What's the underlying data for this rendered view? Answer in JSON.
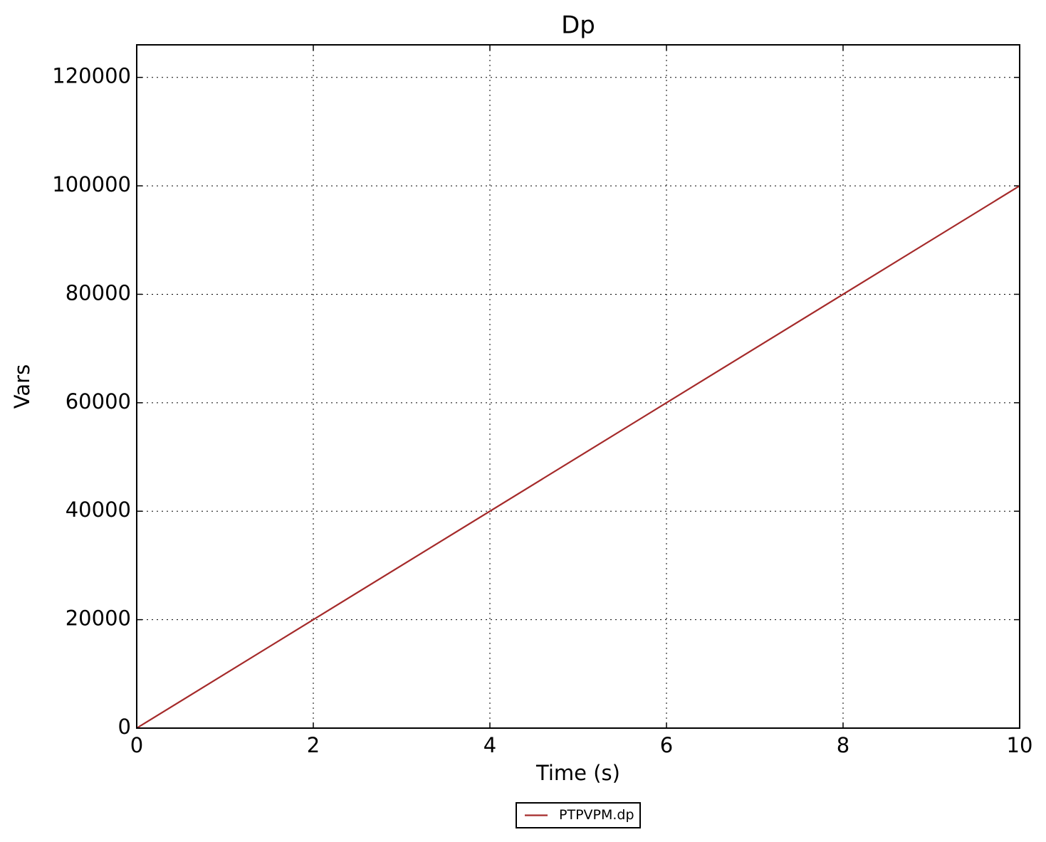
{
  "chart_data": {
    "type": "line",
    "title": "Dp",
    "x_label": "Time (s)",
    "y_label": "Vars",
    "x": [
      0,
      10
    ],
    "series": [
      {
        "name": "PTPVPM.dp",
        "color": "#a52a2a",
        "values": [
          0,
          100000
        ]
      }
    ],
    "xlim": [
      0,
      10
    ],
    "xticks": [
      0,
      2,
      4,
      6,
      8,
      10
    ],
    "ylim": [
      0,
      126000
    ],
    "yticks": [
      0,
      20000,
      40000,
      60000,
      80000,
      100000,
      120000
    ],
    "grid": true,
    "legend": "bottom"
  }
}
